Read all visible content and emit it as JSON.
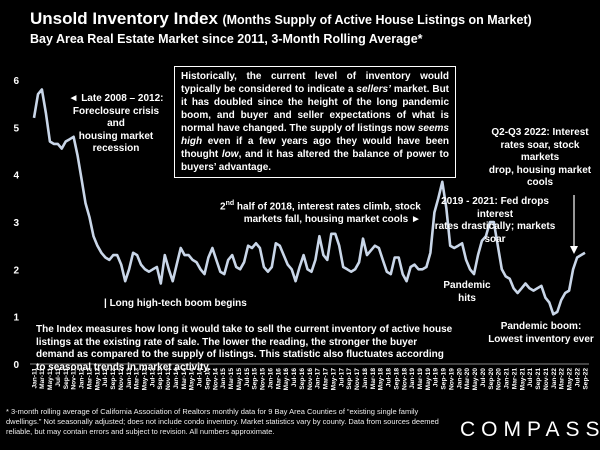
{
  "header": {
    "title_main": "Unsold Inventory Index",
    "title_paren": "(Months Supply of Active House Listings on Market)",
    "subtitle": "Bay Area Real Estate Market since 2011, 3-Month Rolling Average*"
  },
  "annotations": {
    "late2008_a": "◄ Late 2008 – 2012:",
    "late2008_b": "Foreclosure crisis and",
    "late2008_c": "housing market recession",
    "boom": "| Long high-tech boom begins",
    "h2018_a": "half of 2018, interest rates climb, stock",
    "h2018_sup_pre": "2",
    "h2018_sup": "nd",
    "h2018_b": "markets fall, housing market cools ►",
    "fed_a": "2019 - 2021: Fed drops interest",
    "fed_b": "rates drastically; markets soar",
    "q2q3_a": "Q2-Q3 2022: Interest",
    "q2q3_b": "rates soar, stock markets",
    "q2q3_c": "drop, housing market",
    "q2q3_d": "cools",
    "pandemic_a": "Pandemic",
    "pandemic_b": "hits",
    "pboom_a": "Pandemic boom:",
    "pboom_b": "Lowest inventory ever"
  },
  "box_top": {
    "p1": "Historically, the current level of inventory would typically be considered to indicate a ",
    "p1_em": "sellers’",
    "p2": " market. But it has doubled since the height of the long pandemic boom, and buyer and seller expectations of what is normal have changed. The supply of listings now ",
    "p2_em": "seems high",
    "p3": " even if a few years ago they would have been thought ",
    "p3_em": "low",
    "p4": ", and it has altered the balance of power to buyers’ advantage."
  },
  "box_bottom": "The Index measures how long it would take to sell the current inventory of active house listings at the existing rate of sale. The lower the reading, the stronger the buyer demand as compared to the supply of listings. This statistic also fluctuates according to seasonal trends in market activity.",
  "footnote": "* 3-month rolling average of California Association of Realtors monthly data for 9 Bay Area Counties of “existing single family dwellings.” Not seasonally adjusted; does not include condo inventory. Market statistics vary by county. Data from sources deemed reliable, but may contain errors and subject to revision. All numbers approximate.",
  "logo": "COMPASS",
  "colors": {
    "line": "#c9d6e8",
    "background": "#000000",
    "text": "#ffffff"
  },
  "chart_data": {
    "type": "line",
    "title": "Unsold Inventory Index",
    "ylim": [
      0,
      6
    ],
    "y_ticks": [
      "0",
      "1",
      "2",
      "3",
      "4",
      "5",
      "6"
    ],
    "x_start": "Jan-11",
    "x_end": "Sep-22",
    "x_ticks": [
      "Jan-11",
      "Mar-11",
      "May-11",
      "Jul-11",
      "Sep-11",
      "Nov-11",
      "Jan-12",
      "Mar-12",
      "May-12",
      "Jul-12",
      "Sep-12",
      "Nov-12",
      "Jan-13",
      "Mar-13",
      "May-13",
      "Jul-13",
      "Sep-13",
      "Nov-13",
      "Jan-14",
      "Mar-14",
      "May-14",
      "Jul-14",
      "Sep-14",
      "Nov-14",
      "Jan-15",
      "Mar-15",
      "May-15",
      "Jul-15",
      "Sep-15",
      "Nov-15",
      "Jan-16",
      "Mar-16",
      "May-16",
      "Jul-16",
      "Sep-16",
      "Nov-16",
      "Jan-17",
      "Mar-17",
      "May-17",
      "Jul-17",
      "Sep-17",
      "Nov-17",
      "Jan-18",
      "Mar-18",
      "May-18",
      "Jul-18",
      "Sep-18",
      "Nov-18",
      "Jan-19",
      "Mar-19",
      "May-19",
      "Jul-19",
      "Sep-19",
      "Nov-19",
      "Jan-20",
      "Mar-20",
      "May-20",
      "Jul-20",
      "Sep-20",
      "Nov-20",
      "Jan-21",
      "Mar-21",
      "May-21",
      "Jul-21",
      "Sep-21",
      "Nov-21",
      "Jan-22",
      "Mar-22",
      "May-22",
      "Jul-22",
      "Sep-22"
    ],
    "values": [
      5.2,
      5.7,
      5.8,
      5.3,
      4.7,
      4.65,
      4.65,
      4.55,
      4.7,
      4.75,
      4.8,
      4.4,
      3.9,
      3.4,
      3.1,
      2.7,
      2.5,
      2.35,
      2.25,
      2.2,
      2.3,
      2.3,
      2.1,
      1.75,
      2.0,
      2.35,
      2.3,
      2.1,
      2.0,
      1.95,
      2.0,
      2.05,
      1.7,
      2.3,
      2.0,
      1.75,
      2.1,
      2.45,
      2.3,
      2.3,
      2.2,
      2.15,
      2.0,
      1.9,
      2.25,
      2.45,
      2.2,
      1.95,
      1.9,
      2.2,
      2.3,
      2.05,
      2.0,
      2.15,
      2.5,
      2.45,
      2.55,
      2.45,
      2.05,
      1.95,
      2.05,
      2.55,
      2.5,
      2.3,
      2.1,
      2.0,
      1.75,
      2.05,
      2.3,
      2.0,
      1.95,
      2.2,
      2.7,
      2.3,
      2.2,
      2.75,
      2.75,
      2.5,
      2.05,
      2.0,
      1.95,
      2.0,
      2.15,
      2.65,
      2.3,
      2.4,
      2.5,
      2.45,
      2.2,
      1.95,
      1.9,
      2.25,
      2.25,
      1.9,
      1.75,
      2.05,
      2.1,
      2.0,
      2.0,
      2.05,
      2.35,
      3.2,
      3.5,
      3.85,
      3.3,
      2.5,
      2.45,
      2.5,
      2.55,
      2.2,
      2.0,
      1.9,
      2.3,
      2.6,
      2.7,
      3.0,
      3.0,
      2.5,
      2.0,
      1.85,
      1.8,
      1.6,
      1.5,
      1.6,
      1.7,
      1.6,
      1.55,
      1.6,
      1.65,
      1.4,
      1.3,
      1.05,
      1.1,
      1.35,
      1.5,
      1.55,
      2.0,
      2.25,
      2.3,
      2.35
    ]
  }
}
